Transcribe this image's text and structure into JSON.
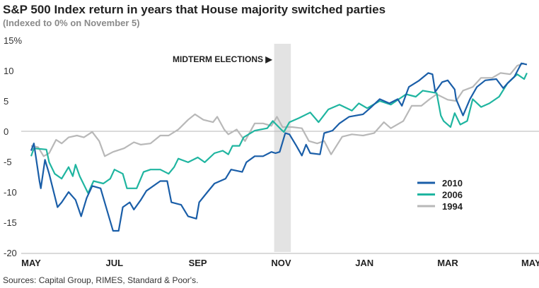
{
  "title": "S&P 500 Index return in years that House majority switched parties",
  "subtitle": "(Indexed to 0% on November 5)",
  "source": "Sources: Capital Group, RIMES, Standard & Poor's.",
  "chart_data": {
    "type": "line",
    "title": "S&P 500 Index return in years that House majority switched parties",
    "subtitle": "(Indexed to 0% on November 5)",
    "xlabel": "",
    "ylabel": "",
    "ylim": [
      -20,
      15
    ],
    "yticks": [
      15,
      10,
      5,
      0,
      -5,
      -10,
      -15,
      -20
    ],
    "ytick_labels": [
      "15%",
      "10",
      "5",
      "0",
      "-5",
      "-10",
      "-15",
      "-20"
    ],
    "xticks": [
      "05-01",
      "07-01",
      "09-01",
      "11-01",
      "01-01",
      "03-01",
      "05-01+"
    ],
    "xtick_labels": [
      "MAY",
      "JUL",
      "SEP",
      "NOV",
      "JAN",
      "MAR",
      "MAY"
    ],
    "grid": false,
    "zero_line": true,
    "annotation": {
      "text": "MIDTERM ELECTIONS ▶",
      "band": [
        "10-26",
        "11-08"
      ],
      "band_color": "#e3e3e3"
    },
    "legend": "right",
    "series": [
      {
        "name": "2010",
        "color": "#1a5ea8",
        "x": [
          "05-01",
          "05-03",
          "05-07",
          "05-08",
          "05-11",
          "05-14",
          "05-20",
          "05-23",
          "05-28",
          "06-03",
          "06-07",
          "06-11",
          "06-15",
          "06-21",
          "06-25",
          "06-30",
          "07-04",
          "07-07",
          "07-12",
          "07-15",
          "07-20",
          "07-24",
          "08-04",
          "08-09",
          "08-12",
          "08-19",
          "08-24",
          "08-30",
          "09-02",
          "09-08",
          "09-13",
          "09-21",
          "09-25",
          "10-03",
          "10-06",
          "10-12",
          "10-18",
          "10-24",
          "10-27",
          "10-30",
          "11-04",
          "11-07",
          "11-12",
          "11-16",
          "11-19",
          "11-22",
          "11-29",
          "12-02",
          "12-08",
          "12-13",
          "12-20",
          "12-30",
          "01-05",
          "01-12",
          "01-19",
          "01-25",
          "01-28",
          "02-03",
          "02-10",
          "02-17",
          "02-20",
          "02-22",
          "02-27",
          "03-01",
          "03-06",
          "03-07",
          "03-12",
          "03-17",
          "03-22",
          "03-28",
          "04-06",
          "04-11",
          "04-14",
          "04-19",
          "04-24",
          "04-28"
        ],
        "y": [
          -3.2,
          -2,
          -8.2,
          -9.4,
          -4.7,
          -7,
          -12.5,
          -11.7,
          -10,
          -11.3,
          -14,
          -11,
          -9,
          -9.4,
          -12.5,
          -16.4,
          -16.4,
          -12.5,
          -11.7,
          -12.9,
          -11.3,
          -9.8,
          -8.2,
          -8.2,
          -11.7,
          -12.1,
          -14,
          -14.4,
          -11.7,
          -10,
          -8.6,
          -7.8,
          -6.3,
          -6.7,
          -5.1,
          -4.1,
          -4.1,
          -3.4,
          -3.6,
          -3.4,
          -0.3,
          -0.5,
          -2.4,
          -4,
          -2.2,
          -3.6,
          -3.8,
          -0.3,
          0.1,
          1.3,
          2.4,
          2.8,
          3.8,
          5.3,
          4.6,
          5.3,
          4.2,
          7.3,
          8.3,
          9.6,
          9.4,
          6.5,
          8.1,
          8.4,
          6.9,
          5.3,
          2.6,
          5.3,
          7.3,
          8.4,
          8.6,
          7.1,
          7.9,
          9,
          11.2,
          11
        ]
      },
      {
        "name": "2006",
        "color": "#1fb5a0",
        "x": [
          "05-01",
          "05-03",
          "05-12",
          "05-14",
          "05-18",
          "05-23",
          "05-28",
          "06-01",
          "06-03",
          "06-06",
          "06-12",
          "06-16",
          "06-23",
          "06-28",
          "07-01",
          "07-07",
          "07-10",
          "07-17",
          "07-22",
          "07-27",
          "08-04",
          "08-10",
          "08-14",
          "08-17",
          "08-24",
          "08-31",
          "09-06",
          "09-13",
          "09-19",
          "09-23",
          "09-26",
          "10-01",
          "10-04",
          "10-12",
          "10-21",
          "10-25",
          "10-31",
          "11-03",
          "11-07",
          "11-14",
          "11-22",
          "11-28",
          "12-05",
          "12-13",
          "12-22",
          "12-27",
          "01-03",
          "01-12",
          "01-20",
          "02-01",
          "02-08",
          "02-13",
          "02-23",
          "02-26",
          "02-28",
          "03-03",
          "03-06",
          "03-10",
          "03-15",
          "03-19",
          "03-25",
          "04-01",
          "04-08",
          "04-14",
          "04-21",
          "04-26",
          "04-28"
        ],
        "y": [
          -4.1,
          -2.8,
          -3,
          -5.1,
          -7,
          -7.8,
          -5.9,
          -7.4,
          -5.5,
          -7.4,
          -10.2,
          -8.2,
          -8.6,
          -7.8,
          -6.3,
          -7,
          -9.4,
          -9.4,
          -6.7,
          -6.3,
          -6.3,
          -7,
          -5.9,
          -4.5,
          -5.1,
          -4.3,
          -5.1,
          -3.6,
          -3.2,
          -3.8,
          -2.4,
          -2.4,
          -1,
          0.1,
          0.5,
          1.7,
          0.3,
          -0.1,
          1.5,
          2.2,
          3.1,
          1.5,
          3.6,
          4.4,
          3.4,
          4.6,
          3.8,
          5,
          4.4,
          6.1,
          5.7,
          6.7,
          6.3,
          2.6,
          1.7,
          0.7,
          3,
          1.1,
          1.7,
          5.3,
          4,
          4.6,
          5.7,
          7.9,
          9.4,
          8.6,
          9.6
        ]
      },
      {
        "name": "1994",
        "color": "#b8b8b8",
        "x": [
          "05-01",
          "05-06",
          "05-10",
          "05-14",
          "05-19",
          "05-23",
          "05-28",
          "06-04",
          "06-09",
          "06-15",
          "06-20",
          "06-24",
          "06-30",
          "07-08",
          "07-15",
          "07-20",
          "07-27",
          "08-04",
          "08-10",
          "08-17",
          "08-24",
          "08-29",
          "09-05",
          "09-12",
          "09-15",
          "09-20",
          "09-23",
          "09-29",
          "10-05",
          "10-12",
          "10-18",
          "10-24",
          "10-28",
          "11-02",
          "11-09",
          "11-16",
          "11-21",
          "11-27",
          "12-02",
          "12-07",
          "12-15",
          "12-22",
          "12-30",
          "01-08",
          "01-15",
          "01-20",
          "01-29",
          "02-05",
          "02-12",
          "02-18",
          "02-23",
          "03-01",
          "03-07",
          "03-12",
          "03-19",
          "03-25",
          "04-03",
          "04-09",
          "04-16",
          "04-21",
          "04-26"
        ],
        "y": [
          -2.4,
          -2.6,
          -4.1,
          -3.6,
          -1.4,
          -2,
          -1,
          -0.7,
          -1,
          -0.1,
          -1.6,
          -4.1,
          -3.4,
          -2.8,
          -1.8,
          -2.2,
          -2,
          -0.7,
          -0.7,
          0.3,
          1.9,
          2.8,
          1.9,
          1.5,
          2.4,
          0.3,
          -0.5,
          0.3,
          -1.6,
          1.3,
          1.3,
          0.9,
          2.4,
          0.7,
          0.7,
          0.5,
          -1.6,
          -2,
          -1.6,
          -3.8,
          -0.9,
          -0.5,
          -0.7,
          -0.3,
          1.5,
          0.5,
          1.7,
          4.2,
          4.2,
          5.3,
          6.1,
          5.2,
          5,
          6.7,
          7.3,
          8.8,
          8.8,
          9.6,
          9.4,
          10.8,
          11.2
        ]
      }
    ]
  }
}
